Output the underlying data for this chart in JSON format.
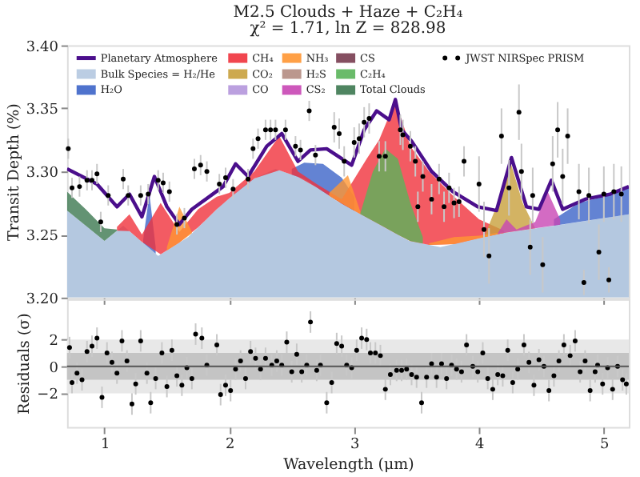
{
  "chart_data": [
    {
      "type": "area",
      "title": "M2.5 Clouds + Haze + C₂H₄",
      "subtitle": "χ² = 1.71, ln Z = 828.98",
      "ylabel": "Transit Depth (%)",
      "xlim": [
        0.7,
        5.2
      ],
      "ylim": [
        3.2,
        3.4
      ],
      "xticks": [
        1,
        2,
        3,
        4,
        5
      ],
      "yticks": [
        {
          "value": 3.2,
          "label": "3.20"
        },
        {
          "value": 3.25,
          "label": "3.25"
        },
        {
          "value": 3.3,
          "label": "3.30"
        },
        {
          "value": 3.35,
          "label": "3.35"
        },
        {
          "value": 3.4,
          "label": "3.40"
        }
      ],
      "tick_labels": "y",
      "legend": "top",
      "series": [
        {
          "name": "Planetary Atmosphere",
          "type": "line",
          "color": "#4b0f8c",
          "x": [
            0.7,
            0.94,
            1.1,
            1.2,
            1.3,
            1.4,
            1.5,
            1.6,
            1.7,
            1.95,
            2.05,
            2.15,
            2.3,
            2.42,
            2.55,
            2.65,
            2.78,
            2.98,
            3.08,
            3.18,
            3.28,
            3.33,
            3.38,
            3.46,
            3.62,
            3.79,
            3.99,
            4.14,
            4.26,
            4.38,
            4.48,
            4.58,
            4.67,
            4.85,
            5.05,
            5.2
          ],
          "values": [
            3.302,
            3.29,
            3.272,
            3.282,
            3.264,
            3.296,
            3.272,
            3.258,
            3.27,
            3.288,
            3.306,
            3.296,
            3.32,
            3.33,
            3.308,
            3.317,
            3.318,
            3.305,
            3.333,
            3.348,
            3.341,
            3.357,
            3.333,
            3.324,
            3.3,
            3.284,
            3.272,
            3.269,
            3.311,
            3.272,
            3.27,
            3.293,
            3.27,
            3.278,
            3.282,
            3.288
          ]
        },
        {
          "name": "Bulk Species = H₂/He",
          "color": "#b4c8e0",
          "x": [
            0.7,
            1.0,
            1.15,
            1.43,
            1.67,
            1.92,
            2.17,
            2.37,
            2.6,
            2.87,
            3.11,
            3.44,
            3.69,
            4.18,
            4.67,
            5.2
          ],
          "values": [
            3.269,
            3.245,
            3.257,
            3.233,
            3.248,
            3.272,
            3.293,
            3.302,
            3.294,
            3.276,
            3.263,
            3.245,
            3.24,
            3.251,
            3.258,
            3.266
          ]
        },
        {
          "name": "H₂O",
          "color": "#3c64c8",
          "x": [
            1.31,
            1.36,
            1.41,
            2.0,
            2.5,
            2.6,
            2.75,
            2.9,
            3.0,
            3.5,
            4.6,
            4.8,
            5.0,
            5.2
          ],
          "values": [
            3.246,
            3.282,
            3.24,
            null,
            3.302,
            3.307,
            3.306,
            3.295,
            3.28,
            null,
            3.262,
            3.275,
            3.28,
            3.287
          ]
        },
        {
          "name": "CH₄",
          "color": "#f0323c",
          "x": [
            1.1,
            1.2,
            1.3,
            1.45,
            1.6,
            1.75,
            1.9,
            2.0,
            2.2,
            2.4,
            2.55,
            2.7,
            2.9,
            3.1,
            3.2,
            3.33,
            3.45,
            3.6,
            3.8,
            4.0,
            4.2
          ],
          "values": [
            3.256,
            3.266,
            3.25,
            3.275,
            3.252,
            3.27,
            3.28,
            3.283,
            3.3,
            3.328,
            3.3,
            3.29,
            3.278,
            3.31,
            3.325,
            3.356,
            3.32,
            3.3,
            3.28,
            3.262,
            3.253
          ]
        },
        {
          "name": "CO₂",
          "color": "#c8a03c",
          "x": [
            4.05,
            4.15,
            4.25,
            4.35,
            4.45
          ],
          "values": [
            3.25,
            3.275,
            3.308,
            3.275,
            3.255
          ]
        },
        {
          "name": "CO",
          "color": "#b496dc"
        },
        {
          "name": "NH₃",
          "color": "#ff9632",
          "x": [
            1.5,
            1.6,
            1.7,
            2.2,
            2.8,
            2.95,
            3.05,
            3.3,
            3.6,
            3.8,
            4.0,
            4.2
          ],
          "values": [
            3.24,
            3.272,
            3.252,
            null,
            3.283,
            3.297,
            3.268,
            null,
            3.243,
            3.248,
            3.249,
            3.252
          ]
        },
        {
          "name": "H₂S",
          "color": "#b48c82"
        },
        {
          "name": "CS₂",
          "color": "#c846b4",
          "x": [
            4.15,
            4.22,
            4.3,
            4.45,
            4.55,
            4.65
          ],
          "values": [
            3.251,
            3.262,
            3.254,
            3.26,
            3.284,
            3.262
          ]
        },
        {
          "name": "CS",
          "color": "#783c50"
        },
        {
          "name": "C₂H₄",
          "color": "#5ab45a",
          "x": [
            3.05,
            3.15,
            3.25,
            3.35,
            3.45,
            3.55
          ],
          "values": [
            3.267,
            3.3,
            3.318,
            3.31,
            3.275,
            3.248
          ]
        },
        {
          "name": "Total Clouds",
          "color": "#3c7850",
          "x": [
            0.7,
            0.85,
            1.0,
            1.1
          ],
          "values": [
            3.284,
            3.27,
            3.255,
            3.254
          ]
        },
        {
          "name": "JWST NIRSpec PRISM",
          "type": "scatter",
          "color": "#000000",
          "x": [
            0.71,
            0.74,
            0.8,
            0.86,
            0.9,
            0.94,
            0.97,
            1.03,
            1.15,
            1.19,
            1.29,
            1.35,
            1.43,
            1.47,
            1.52,
            1.58,
            1.64,
            1.72,
            1.77,
            1.82,
            1.92,
            1.97,
            2.03,
            2.15,
            2.19,
            2.23,
            2.29,
            2.33,
            2.37,
            2.45,
            2.53,
            2.57,
            2.64,
            2.69,
            2.84,
            2.88,
            2.92,
            3.0,
            3.04,
            3.08,
            3.12,
            3.2,
            3.25,
            3.37,
            3.39,
            3.45,
            3.49,
            3.51,
            3.55,
            3.62,
            3.68,
            3.72,
            3.76,
            3.8,
            3.84,
            3.88,
            4.0,
            4.04,
            4.08,
            4.18,
            4.24,
            4.32,
            4.34,
            4.41,
            4.43,
            4.51,
            4.59,
            4.63,
            4.67,
            4.71,
            4.8,
            4.84,
            4.88,
            4.96,
            5.0,
            5.04,
            5.08,
            5.14
          ],
          "values": [
            3.318,
            3.287,
            3.288,
            3.293,
            3.293,
            3.298,
            3.26,
            3.281,
            3.294,
            3.281,
            3.281,
            3.282,
            3.293,
            3.291,
            3.284,
            3.258,
            3.263,
            3.302,
            3.305,
            3.3,
            3.29,
            3.295,
            3.286,
            3.294,
            3.318,
            3.326,
            3.333,
            3.333,
            3.333,
            3.333,
            3.32,
            3.317,
            3.348,
            3.313,
            3.335,
            3.33,
            3.308,
            3.323,
            3.326,
            3.339,
            3.342,
            3.312,
            3.312,
            3.333,
            3.329,
            3.32,
            3.308,
            3.272,
            3.296,
            3.278,
            3.294,
            3.272,
            3.287,
            3.275,
            3.276,
            3.308,
            3.29,
            3.254,
            3.233,
            3.328,
            3.287,
            3.347,
            3.3,
            3.24,
            3.281,
            3.226,
            3.306,
            3.333,
            3.296,
            3.328,
            3.284,
            3.212,
            3.281,
            3.236,
            3.282,
            3.214,
            3.284,
            3.282
          ],
          "errors": [
            0.008,
            0.008,
            0.008,
            0.008,
            0.008,
            0.008,
            0.008,
            0.008,
            0.008,
            0.008,
            0.008,
            0.008,
            0.008,
            0.008,
            0.008,
            0.008,
            0.008,
            0.008,
            0.008,
            0.008,
            0.008,
            0.008,
            0.008,
            0.008,
            0.008,
            0.008,
            0.008,
            0.008,
            0.008,
            0.008,
            0.008,
            0.008,
            0.008,
            0.008,
            0.012,
            0.012,
            0.012,
            0.012,
            0.012,
            0.012,
            0.012,
            0.012,
            0.012,
            0.012,
            0.012,
            0.012,
            0.012,
            0.012,
            0.012,
            0.012,
            0.012,
            0.012,
            0.012,
            0.012,
            0.012,
            0.012,
            0.022,
            0.022,
            0.022,
            0.022,
            0.022,
            0.022,
            0.022,
            0.022,
            0.022,
            0.022,
            0.022,
            0.022,
            0.022,
            0.022,
            0.022,
            0.01,
            0.022,
            0.022,
            0.022,
            0.01,
            0.022,
            0.022
          ]
        }
      ]
    },
    {
      "type": "scatter",
      "xlabel": "Wavelength (μm)",
      "ylabel": "Residuals (σ)",
      "xlim": [
        0.7,
        5.2
      ],
      "ylim": [
        -4.5,
        5
      ],
      "xticks": [
        1,
        2,
        3,
        4,
        5
      ],
      "yticks": [
        {
          "value": -2,
          "label": "−2"
        },
        0,
        2
      ],
      "bands": [
        {
          "axis": "y",
          "from": -2,
          "to": 2,
          "color": "#e8e8e8"
        },
        {
          "axis": "y",
          "from": -1,
          "to": 1,
          "color": "#c4c4c4"
        }
      ],
      "ref_lines": [
        {
          "axis": "y",
          "value": 0,
          "color": "#555555"
        }
      ],
      "series": [
        {
          "color": "#000000",
          "x": [
            0.72,
            0.74,
            0.78,
            0.82,
            0.86,
            0.9,
            0.94,
            0.98,
            1.02,
            1.06,
            1.1,
            1.14,
            1.18,
            1.22,
            1.25,
            1.29,
            1.34,
            1.37,
            1.41,
            1.46,
            1.5,
            1.54,
            1.58,
            1.62,
            1.66,
            1.7,
            1.73,
            1.78,
            1.82,
            1.9,
            1.93,
            1.97,
            2.01,
            2.05,
            2.09,
            2.13,
            2.17,
            2.21,
            2.25,
            2.29,
            2.34,
            2.38,
            2.42,
            2.46,
            2.5,
            2.54,
            2.58,
            2.62,
            2.65,
            2.7,
            2.73,
            2.78,
            2.82,
            2.86,
            2.9,
            2.94,
            2.98,
            3.02,
            3.06,
            3.1,
            3.13,
            3.17,
            3.21,
            3.25,
            3.29,
            3.34,
            3.38,
            3.42,
            3.46,
            3.5,
            3.54,
            3.58,
            3.62,
            3.66,
            3.7,
            3.74,
            3.78,
            3.82,
            3.86,
            3.9,
            3.95,
            3.99,
            4.03,
            4.07,
            4.11,
            4.15,
            4.19,
            4.23,
            4.27,
            4.31,
            4.36,
            4.4,
            4.44,
            4.48,
            4.52,
            4.56,
            4.6,
            4.64,
            4.68,
            4.73,
            4.77,
            4.81,
            4.85,
            4.89,
            4.93,
            4.95,
            4.99,
            5.03,
            5.07,
            5.11,
            5.15,
            5.18
          ],
          "values": [
            1.4,
            -1.2,
            -0.5,
            -1.0,
            1.1,
            1.5,
            2.1,
            -2.3,
            1.0,
            0.3,
            -0.5,
            1.9,
            0.4,
            -2.8,
            -1.3,
            1.9,
            -0.5,
            -2.7,
            -0.9,
            1.0,
            -1.5,
            1.2,
            -0.7,
            -1.4,
            -0.1,
            -0.9,
            2.4,
            2.1,
            0.1,
            1.6,
            -2.1,
            -1.4,
            -1.8,
            -0.2,
            0.4,
            -0.9,
            1.1,
            0.6,
            -0.2,
            0.6,
            0.1,
            0.4,
            0.1,
            1.8,
            -0.4,
            0.9,
            -0.4,
            0.1,
            3.3,
            -0.3,
            0.1,
            -2.7,
            -1.2,
            1.7,
            1.5,
            0.1,
            -0.1,
            1.2,
            2.1,
            2.0,
            1.0,
            1.0,
            0.8,
            -1.7,
            -0.6,
            -0.3,
            -0.3,
            -0.2,
            -0.6,
            -0.8,
            -2.7,
            -0.8,
            0.2,
            -0.8,
            0.2,
            -0.9,
            0.1,
            -0.2,
            -0.4,
            1.6,
            0.0,
            -0.4,
            1.0,
            -0.9,
            -1.7,
            -0.6,
            -0.7,
            1.2,
            -1.2,
            -0.2,
            1.6,
            0.3,
            -1.4,
            0.5,
            0.0,
            -1.8,
            -0.7,
            0.4,
            1.6,
            0.8,
            1.9,
            -0.4,
            0.4,
            -1.8,
            -0.4,
            0.1,
            -1.3,
            -0.1,
            -1.7,
            0.0,
            -1.0,
            -1.3
          ],
          "errors": [
            0.8,
            0.8,
            0.8,
            0.8,
            0.8,
            0.8,
            0.8,
            0.8,
            0.8,
            0.8,
            0.8,
            0.8,
            0.8,
            0.8,
            0.8,
            0.8,
            0.8,
            0.8,
            0.8,
            0.8,
            0.8,
            0.8,
            0.8,
            0.8,
            0.8,
            0.8,
            0.8,
            0.8,
            0.8,
            0.8,
            0.8,
            0.8,
            0.8,
            0.8,
            0.8,
            0.8,
            0.8,
            0.8,
            0.8,
            0.8,
            0.8,
            0.8,
            0.8,
            0.8,
            0.8,
            0.8,
            0.8,
            0.8,
            0.8,
            0.8,
            0.8,
            0.8,
            0.8,
            0.8,
            0.8,
            0.8,
            0.8,
            0.8,
            0.8,
            0.8,
            0.8,
            0.8,
            0.8,
            0.8,
            0.8,
            0.8,
            0.8,
            0.8,
            0.8,
            0.8,
            0.8,
            0.8,
            0.8,
            0.8,
            0.8,
            0.8,
            0.8,
            0.8,
            0.8,
            0.8,
            0.8,
            0.8,
            0.8,
            0.8,
            0.8,
            0.8,
            0.8,
            0.8,
            0.8,
            0.8,
            0.8,
            0.8,
            0.8,
            0.8,
            0.8,
            0.8,
            0.8,
            0.8,
            0.8,
            0.8,
            0.8,
            0.8,
            0.8,
            0.8,
            0.8,
            0.8,
            0.8,
            0.8,
            0.8,
            0.8,
            0.8,
            0.8
          ]
        }
      ]
    }
  ]
}
